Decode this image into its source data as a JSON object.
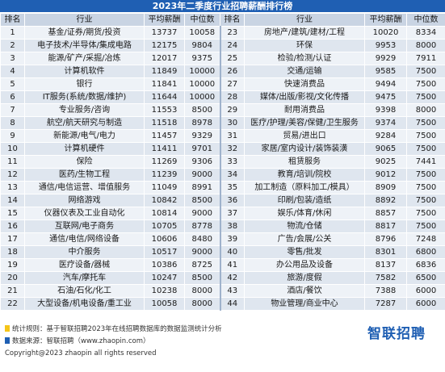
{
  "title": "2023年二季度行业招聘薪酬排行榜",
  "headers": [
    "排名",
    "行业",
    "平均薪酬",
    "中位数",
    "排名",
    "行业",
    "平均薪酬",
    "中位数"
  ],
  "rows": [
    [
      "1",
      "基金/证券/期货/投资",
      "13737",
      "10058",
      "23",
      "房地产/建筑/建材/工程",
      "10020",
      "8334"
    ],
    [
      "2",
      "电子技术/半导体/集成电路",
      "12175",
      "9804",
      "24",
      "环保",
      "9953",
      "8000"
    ],
    [
      "3",
      "能源/矿产/采掘/冶炼",
      "12017",
      "9375",
      "25",
      "检验/检测/认证",
      "9929",
      "7911"
    ],
    [
      "4",
      "计算机软件",
      "11849",
      "10000",
      "26",
      "交通/运输",
      "9585",
      "7500"
    ],
    [
      "5",
      "银行",
      "11841",
      "10000",
      "27",
      "快速消费品",
      "9494",
      "7500"
    ],
    [
      "6",
      "IT服务(系统/数据/维护)",
      "11644",
      "10000",
      "28",
      "媒体/出版/影视/文化传播",
      "9475",
      "7500"
    ],
    [
      "7",
      "专业服务/咨询",
      "11553",
      "8500",
      "29",
      "耐用消费品",
      "9398",
      "8000"
    ],
    [
      "8",
      "航空/航天研究与制造",
      "11518",
      "8978",
      "30",
      "医疗/护理/美容/保健/卫生服务",
      "9374",
      "7500"
    ],
    [
      "9",
      "新能源/电气/电力",
      "11457",
      "9329",
      "31",
      "贸易/进出口",
      "9284",
      "7500"
    ],
    [
      "10",
      "计算机硬件",
      "11411",
      "9701",
      "32",
      "家居/室内设计/装饰装潢",
      "9065",
      "7500"
    ],
    [
      "11",
      "保险",
      "11269",
      "9306",
      "33",
      "租赁服务",
      "9025",
      "7441"
    ],
    [
      "12",
      "医药/生物工程",
      "11239",
      "9000",
      "34",
      "教育/培训/院校",
      "9012",
      "7500"
    ],
    [
      "13",
      "通信/电信运营、增值服务",
      "11049",
      "8991",
      "35",
      "加工制造（原料加工/模具）",
      "8909",
      "7500"
    ],
    [
      "14",
      "网络游戏",
      "10842",
      "8500",
      "36",
      "印刷/包装/造纸",
      "8892",
      "7500"
    ],
    [
      "15",
      "仪器仪表及工业自动化",
      "10814",
      "9000",
      "37",
      "娱乐/体育/休闲",
      "8857",
      "7500"
    ],
    [
      "16",
      "互联网/电子商务",
      "10705",
      "8778",
      "38",
      "物流/仓储",
      "8817",
      "7500"
    ],
    [
      "17",
      "通信/电信/网络设备",
      "10606",
      "8480",
      "39",
      "广告/会展/公关",
      "8796",
      "7248"
    ],
    [
      "18",
      "中介服务",
      "10517",
      "9000",
      "40",
      "零售/批发",
      "8301",
      "6800"
    ],
    [
      "19",
      "医疗设备/器械",
      "10386",
      "8725",
      "41",
      "办公用品及设备",
      "8137",
      "6836"
    ],
    [
      "20",
      "汽车/摩托车",
      "10247",
      "8500",
      "42",
      "旅游/度假",
      "7582",
      "6500"
    ],
    [
      "21",
      "石油/石化/化工",
      "10238",
      "8000",
      "43",
      "酒店/餐饮",
      "7388",
      "6000"
    ],
    [
      "22",
      "大型设备/机电设备/重工业",
      "10058",
      "8000",
      "44",
      "物业管理/商业中心",
      "7287",
      "6000"
    ]
  ],
  "footer": {
    "rule": "统计规则：基于智联招聘2023年在线招聘数据库的数据监测统计分析",
    "source": "数据来源：智联招聘（www.zhaopin.com）",
    "copyright": "Copyright@2023 zhaopin all rights reserved",
    "logo": "智联招聘",
    "rule_color": "#f5c518",
    "source_color": "#1f5fb3"
  }
}
